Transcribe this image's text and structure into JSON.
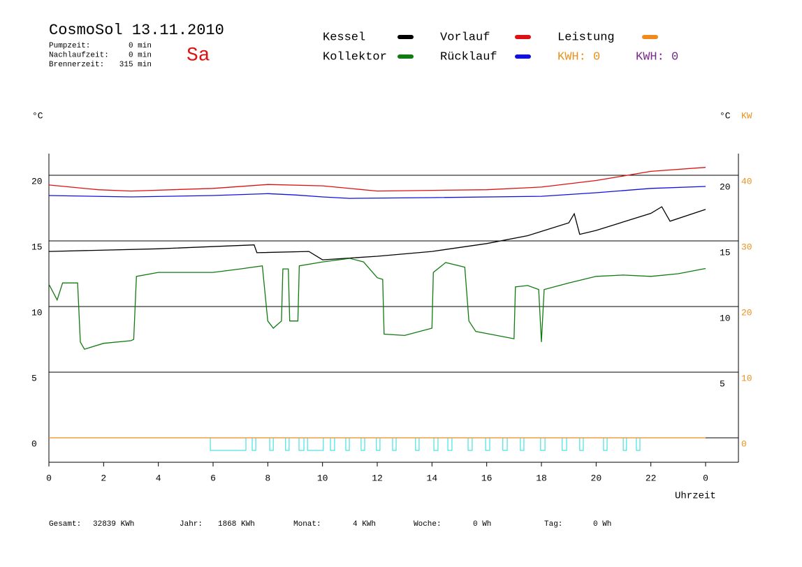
{
  "chart_data": {
    "type": "line",
    "title": "CosmoSol 13.11.2010",
    "day": "Sa",
    "info": [
      {
        "label": "Pumpzeit:",
        "value": "0 min"
      },
      {
        "label": "Nachlaufzeit:",
        "value": "0 min"
      },
      {
        "label": "Brennerzeit:",
        "value": "315 min"
      }
    ],
    "y_label": "°C",
    "y2_label_left": "°C",
    "y2_label": "KW",
    "x_label": "Uhrzeit",
    "kwh_labels": [
      {
        "text": "KWH: 0",
        "color": "#e8921e"
      },
      {
        "text": "KWH: 0",
        "color": "#7a2a8a"
      }
    ],
    "xlim": [
      0,
      25.2
    ],
    "xticks": [
      0,
      2,
      4,
      6,
      8,
      10,
      12,
      14,
      16,
      18,
      20,
      22,
      {
        "value": 24,
        "label": "0"
      }
    ],
    "ylim": [
      -1.86,
      21.65
    ],
    "yticks": [
      0,
      5,
      10,
      15,
      20
    ],
    "y_right_ticks": [
      5,
      10,
      15,
      20
    ],
    "y2lim": [
      -3.72,
      43.3
    ],
    "y2ticks": [
      0,
      10,
      20,
      30,
      40
    ],
    "grid": true,
    "series": [
      {
        "name": "Kessel",
        "color": "#000000",
        "x": [
          0,
          4,
          7.5,
          7.6,
          9.5,
          10,
          12,
          14,
          16,
          17.5,
          19,
          19.2,
          19.4,
          20,
          22,
          22.4,
          22.7,
          24
        ],
        "values": [
          14.2,
          14.4,
          14.7,
          14.1,
          14.2,
          13.56,
          13.83,
          14.2,
          14.8,
          15.4,
          16.38,
          17.07,
          15.5,
          15.8,
          17.1,
          17.6,
          16.5,
          17.4
        ]
      },
      {
        "name": "Kollektor",
        "color": "#117a11",
        "x": [
          0,
          0.3,
          0.5,
          1.05,
          1.15,
          1.3,
          2,
          3,
          3.1,
          3.2,
          4,
          6,
          7,
          7.8,
          8.0,
          8.2,
          8.5,
          8.55,
          8.75,
          8.8,
          9.1,
          9.15,
          10,
          11,
          11.5,
          12,
          12.2,
          12.25,
          13,
          14,
          14.05,
          14.5,
          15.2,
          15.35,
          15.6,
          16,
          17,
          17.05,
          17.5,
          17.9,
          18.0,
          18.1,
          19,
          20,
          21,
          22,
          23,
          24
        ],
        "values": [
          11.7,
          10.5,
          11.8,
          11.8,
          7.3,
          6.75,
          7.2,
          7.4,
          7.5,
          12.3,
          12.6,
          12.6,
          12.87,
          13.1,
          8.9,
          8.35,
          8.9,
          12.87,
          12.87,
          8.9,
          8.9,
          13.1,
          13.4,
          13.67,
          13.4,
          12.2,
          12.07,
          7.9,
          7.8,
          8.35,
          12.6,
          13.35,
          13.0,
          8.9,
          8.1,
          7.95,
          7.55,
          11.5,
          11.6,
          11.3,
          7.3,
          11.3,
          11.8,
          12.3,
          12.4,
          12.3,
          12.5,
          12.9
        ]
      },
      {
        "name": "Vorlauf",
        "color": "#dd1111",
        "x": [
          0,
          1.8,
          3,
          6,
          8,
          10,
          12,
          14,
          16,
          18,
          20,
          22,
          24
        ],
        "values": [
          19.26,
          18.9,
          18.8,
          19.0,
          19.3,
          19.2,
          18.8,
          18.85,
          18.9,
          19.1,
          19.6,
          20.3,
          20.6
        ]
      },
      {
        "name": "Rücklauf",
        "color": "#1111dd",
        "x": [
          0,
          3,
          6,
          8,
          9,
          10,
          11,
          14,
          18,
          20,
          22,
          24
        ],
        "values": [
          18.46,
          18.35,
          18.46,
          18.6,
          18.5,
          18.35,
          18.24,
          18.3,
          18.4,
          18.67,
          19.0,
          19.15
        ]
      },
      {
        "name": "Leistung",
        "color": "#f08a1c",
        "axis": "y2",
        "x": [
          0,
          24
        ],
        "values": [
          0,
          0
        ]
      }
    ],
    "pump_on": [
      [
        5.9,
        7.2
      ],
      [
        7.43,
        7.56
      ],
      [
        8.07,
        8.2
      ],
      [
        8.65,
        8.78
      ],
      [
        9.14,
        9.32
      ],
      [
        9.45,
        10.03
      ],
      [
        10.29,
        10.44
      ],
      [
        10.85,
        10.98
      ],
      [
        11.41,
        11.54
      ],
      [
        11.97,
        12.1
      ],
      [
        12.56,
        12.69
      ],
      [
        13.4,
        13.53
      ],
      [
        14.07,
        14.22
      ],
      [
        14.58,
        14.73
      ],
      [
        15.32,
        15.47
      ],
      [
        15.96,
        16.11
      ],
      [
        16.59,
        16.75
      ],
      [
        17.23,
        17.36
      ],
      [
        17.97,
        18.13
      ],
      [
        18.76,
        18.92
      ],
      [
        19.4,
        19.53
      ],
      [
        20.27,
        20.4
      ],
      [
        20.99,
        21.11
      ],
      [
        21.47,
        21.6
      ]
    ],
    "footer": [
      {
        "label": "Gesamt:",
        "value": "32839 KWh"
      },
      {
        "label": "Jahr:",
        "value": "1868 KWh"
      },
      {
        "label": "Monat:",
        "value": "4 KWh"
      },
      {
        "label": "Woche:",
        "value": "0 Wh"
      },
      {
        "label": "Tag:",
        "value": "0 Wh"
      }
    ]
  }
}
